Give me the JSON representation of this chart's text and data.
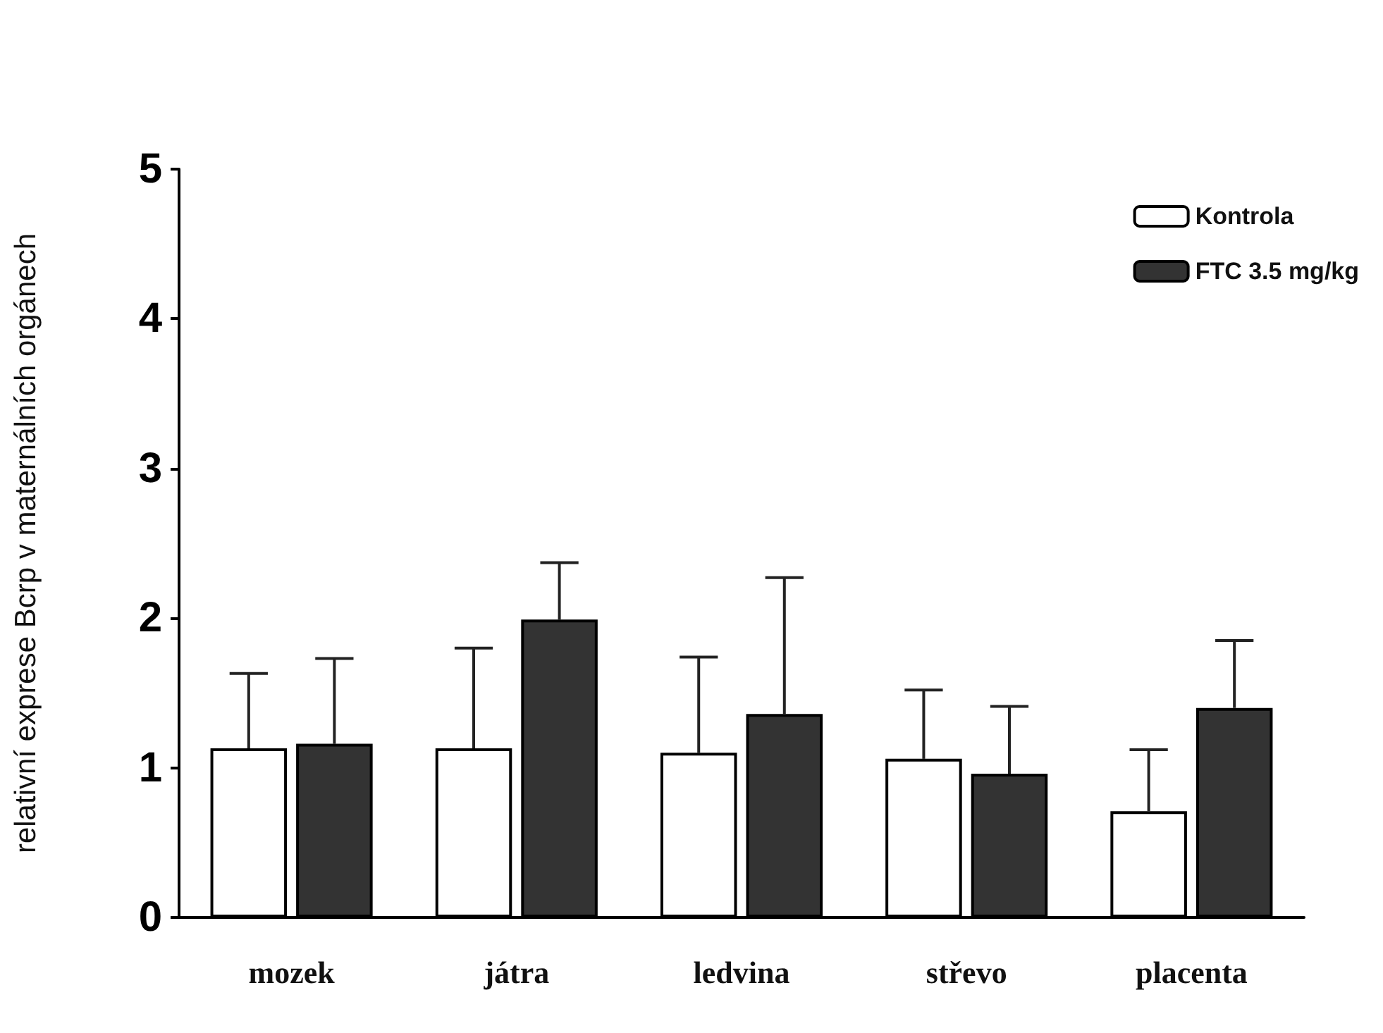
{
  "chart_data": {
    "type": "bar",
    "ylabel": "relativní exprese Bcrp v maternálních orgánech",
    "categories": [
      "mozek",
      "játra",
      "ledvina",
      "střevo",
      "placenta"
    ],
    "series": [
      {
        "name": "Kontrola",
        "color": "#ffffff",
        "values": [
          1.13,
          1.13,
          1.1,
          1.06,
          0.71
        ],
        "errors": [
          [
            1.13,
            1.63
          ],
          [
            1.13,
            1.8
          ],
          [
            1.1,
            1.74
          ],
          [
            1.06,
            1.52
          ],
          [
            0.71,
            1.12
          ]
        ]
      },
      {
        "name": "FTC 3.5 mg/kg",
        "color": "#333333",
        "values": [
          1.16,
          1.99,
          1.36,
          0.96,
          1.4
        ],
        "errors": [
          [
            1.16,
            1.73
          ],
          [
            1.99,
            2.37
          ],
          [
            1.36,
            2.27
          ],
          [
            0.96,
            1.41
          ],
          [
            1.4,
            1.85
          ]
        ]
      }
    ],
    "ylim": [
      0,
      5
    ],
    "yticks": [
      0,
      1,
      2,
      3,
      4,
      5
    ],
    "grid": false,
    "legend": "top right"
  }
}
